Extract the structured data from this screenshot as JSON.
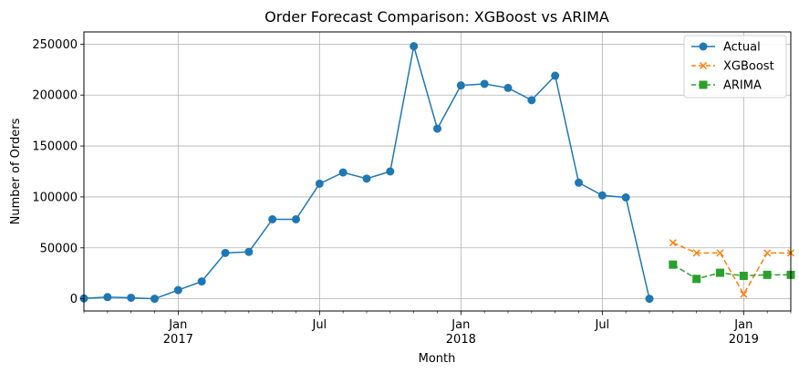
{
  "chart_data": {
    "type": "line",
    "title": "Order Forecast Comparison: XGBoost vs ARIMA",
    "xlabel": "Month",
    "ylabel": "Number of Orders",
    "x_range": [
      "2016-09",
      "2019-03"
    ],
    "ylim": [
      -12000,
      262000
    ],
    "grid": true,
    "legend_position": "top-right",
    "x_ticks": [
      {
        "month": "2017-01",
        "label": "Jan",
        "sublabel": "2017"
      },
      {
        "month": "2017-07",
        "label": "Jul",
        "sublabel": ""
      },
      {
        "month": "2018-01",
        "label": "Jan",
        "sublabel": "2018"
      },
      {
        "month": "2018-07",
        "label": "Jul",
        "sublabel": ""
      },
      {
        "month": "2019-01",
        "label": "Jan",
        "sublabel": "2019"
      }
    ],
    "y_ticks": [
      0,
      50000,
      100000,
      150000,
      200000,
      250000
    ],
    "series": [
      {
        "name": "Actual",
        "color": "#1f77b4",
        "marker": "circle",
        "linestyle": "solid",
        "points": [
          {
            "x": "2016-09",
            "y": 400
          },
          {
            "x": "2016-10",
            "y": 1600
          },
          {
            "x": "2016-11",
            "y": 1000
          },
          {
            "x": "2016-12",
            "y": 0
          },
          {
            "x": "2017-01",
            "y": 8500
          },
          {
            "x": "2017-02",
            "y": 17000
          },
          {
            "x": "2017-03",
            "y": 45000
          },
          {
            "x": "2017-04",
            "y": 46000
          },
          {
            "x": "2017-05",
            "y": 78000
          },
          {
            "x": "2017-06",
            "y": 78000
          },
          {
            "x": "2017-07",
            "y": 113000
          },
          {
            "x": "2017-08",
            "y": 124000
          },
          {
            "x": "2017-09",
            "y": 118000
          },
          {
            "x": "2017-10",
            "y": 125000
          },
          {
            "x": "2017-11",
            "y": 248000
          },
          {
            "x": "2017-12",
            "y": 167000
          },
          {
            "x": "2018-01",
            "y": 209500
          },
          {
            "x": "2018-02",
            "y": 211000
          },
          {
            "x": "2018-03",
            "y": 207000
          },
          {
            "x": "2018-04",
            "y": 195000
          },
          {
            "x": "2018-05",
            "y": 219000
          },
          {
            "x": "2018-06",
            "y": 114000
          },
          {
            "x": "2018-07",
            "y": 101500
          },
          {
            "x": "2018-08",
            "y": 99500
          },
          {
            "x": "2018-09",
            "y": 0
          }
        ]
      },
      {
        "name": "XGBoost",
        "color": "#ff7f0e",
        "marker": "x",
        "linestyle": "dashed",
        "points": [
          {
            "x": "2018-10",
            "y": 55000
          },
          {
            "x": "2018-11",
            "y": 45000
          },
          {
            "x": "2018-12",
            "y": 45000
          },
          {
            "x": "2019-01",
            "y": 4500
          },
          {
            "x": "2019-02",
            "y": 45000
          },
          {
            "x": "2019-03",
            "y": 45000
          }
        ]
      },
      {
        "name": "ARIMA",
        "color": "#2ca02c",
        "marker": "square",
        "linestyle": "dashed",
        "points": [
          {
            "x": "2018-10",
            "y": 33500
          },
          {
            "x": "2018-11",
            "y": 19500
          },
          {
            "x": "2018-12",
            "y": 25500
          },
          {
            "x": "2019-01",
            "y": 22500
          },
          {
            "x": "2019-02",
            "y": 23500
          },
          {
            "x": "2019-03",
            "y": 23500
          }
        ]
      }
    ]
  }
}
